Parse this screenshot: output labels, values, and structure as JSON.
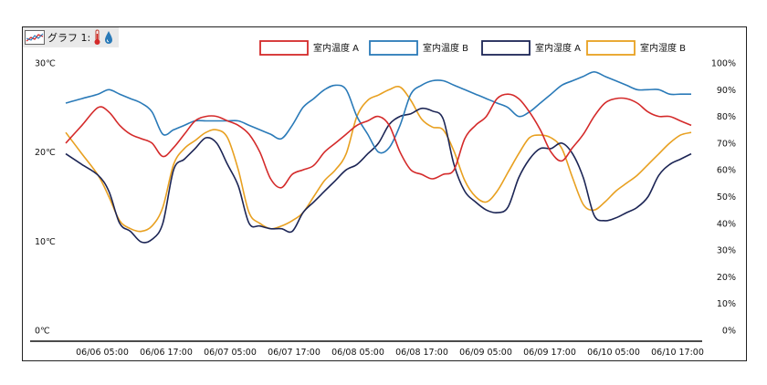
{
  "window": {
    "title": "グラフ 1:",
    "icons": [
      "thermometer-icon",
      "water-drop-icon"
    ]
  },
  "chart_data": {
    "type": "line",
    "x_ticks": [
      "06/06 05:00",
      "06/06 17:00",
      "06/07 05:00",
      "06/07 17:00",
      "06/08 05:00",
      "06/08 17:00",
      "06/09 05:00",
      "06/09 17:00",
      "06/10 05:00",
      "06/10 17:00"
    ],
    "x_range": [
      0,
      116
    ],
    "x_tick_positions": [
      12,
      24,
      36,
      48,
      60,
      72,
      84,
      96,
      108,
      120
    ],
    "y_left": {
      "ticks": [
        "0℃",
        "10℃",
        "20℃",
        "30℃"
      ],
      "range": [
        0,
        30
      ],
      "unit": "℃"
    },
    "y_right": {
      "ticks": [
        "0%",
        "10%",
        "20%",
        "30%",
        "40%",
        "50%",
        "60%",
        "70%",
        "80%",
        "90%",
        "100%"
      ],
      "range": [
        0,
        100
      ],
      "unit": "%"
    },
    "grid": false,
    "legend_position": "top-right",
    "colors": {
      "temp_a": "#d42a2a",
      "temp_b": "#2a7ab8",
      "hum_a": "#1c2555",
      "hum_b": "#e8a020"
    },
    "series": [
      {
        "name": "室内温度 A",
        "axis": "left",
        "color": "#d42a2a",
        "x": [
          0,
          3,
          6,
          8,
          10,
          12,
          14,
          16,
          18,
          20,
          22,
          24,
          26,
          28,
          30,
          32,
          34,
          36,
          38,
          40,
          42,
          44,
          46,
          48,
          50,
          52,
          54,
          56,
          58,
          60,
          62,
          64,
          66,
          68,
          70,
          72,
          74,
          76,
          78,
          80,
          82,
          84,
          86,
          88,
          90,
          92,
          94,
          96,
          98,
          100,
          102,
          104,
          106,
          108,
          110,
          112,
          114,
          116
        ],
        "y": [
          21,
          23,
          25,
          24.5,
          23,
          22,
          21.5,
          21,
          19.5,
          20.5,
          22,
          23.5,
          24,
          24,
          23.5,
          23,
          22,
          20,
          17,
          16,
          17.5,
          18,
          18.5,
          20,
          21,
          22,
          23,
          23.5,
          24,
          23,
          20,
          18,
          17.5,
          17,
          17.5,
          18,
          21.5,
          23,
          24,
          26,
          26.5,
          26,
          24.5,
          22.5,
          20,
          19,
          20.5,
          22,
          24,
          25.5,
          26,
          26,
          25.5,
          24.5,
          24,
          24,
          23.5,
          23
        ]
      },
      {
        "name": "室内温度 B",
        "axis": "left",
        "color": "#2a7ab8",
        "x": [
          0,
          3,
          6,
          8,
          10,
          12,
          14,
          16,
          18,
          20,
          22,
          24,
          26,
          28,
          30,
          32,
          34,
          36,
          38,
          40,
          42,
          44,
          46,
          48,
          50,
          52,
          54,
          56,
          58,
          60,
          62,
          64,
          66,
          68,
          70,
          72,
          74,
          76,
          78,
          80,
          82,
          84,
          86,
          88,
          90,
          92,
          94,
          96,
          98,
          100,
          102,
          104,
          106,
          108,
          110,
          112,
          114,
          116
        ],
        "y": [
          25.5,
          26,
          26.5,
          27,
          26.5,
          26,
          25.5,
          24.5,
          22,
          22.5,
          23,
          23.5,
          23.5,
          23.5,
          23.5,
          23.5,
          23,
          22.5,
          22,
          21.5,
          23,
          25,
          26,
          27,
          27.5,
          27,
          24,
          22,
          20,
          20.5,
          23,
          26.5,
          27.5,
          28,
          28,
          27.5,
          27,
          26.5,
          26,
          25.5,
          25,
          24,
          24.5,
          25.5,
          26.5,
          27.5,
          28,
          28.5,
          29,
          28.5,
          28,
          27.5,
          27,
          27,
          27,
          26.5,
          26.5,
          26.5
        ]
      },
      {
        "name": "室内湿度 A",
        "axis": "right",
        "color": "#1c2555",
        "x": [
          0,
          3,
          6,
          8,
          10,
          12,
          14,
          16,
          18,
          20,
          22,
          24,
          26,
          28,
          30,
          32,
          34,
          36,
          38,
          40,
          42,
          44,
          46,
          48,
          50,
          52,
          54,
          56,
          58,
          60,
          62,
          64,
          66,
          68,
          70,
          72,
          74,
          76,
          78,
          80,
          82,
          84,
          86,
          88,
          90,
          92,
          94,
          96,
          98,
          100,
          102,
          104,
          106,
          108,
          110,
          112,
          114,
          116
        ],
        "y": [
          66,
          62,
          58,
          52,
          40,
          37,
          33,
          34,
          40,
          60,
          64,
          68,
          72,
          70,
          62,
          54,
          40,
          39,
          38,
          38,
          37,
          44,
          48,
          52,
          56,
          60,
          62,
          66,
          70,
          77,
          80,
          81,
          83,
          82,
          79,
          62,
          52,
          48,
          45,
          44,
          46,
          57,
          64,
          68,
          68,
          70,
          66,
          57,
          43,
          41,
          42,
          44,
          46,
          50,
          58,
          62,
          64,
          66
        ]
      },
      {
        "name": "室内湿度 B",
        "axis": "right",
        "color": "#e8a020",
        "x": [
          0,
          3,
          6,
          8,
          10,
          12,
          14,
          16,
          18,
          20,
          22,
          24,
          26,
          28,
          30,
          32,
          34,
          36,
          38,
          40,
          42,
          44,
          46,
          48,
          50,
          52,
          54,
          56,
          58,
          60,
          62,
          64,
          66,
          68,
          70,
          72,
          74,
          76,
          78,
          80,
          82,
          84,
          86,
          88,
          90,
          92,
          94,
          96,
          98,
          100,
          102,
          104,
          106,
          108,
          110,
          112,
          114,
          116
        ],
        "y": [
          74,
          66,
          58,
          50,
          41,
          38,
          37,
          39,
          46,
          62,
          68,
          71,
          74,
          75,
          72,
          60,
          44,
          40,
          38,
          39,
          41,
          44,
          50,
          56,
          60,
          66,
          80,
          86,
          88,
          90,
          91,
          86,
          79,
          76,
          75,
          67,
          56,
          50,
          48,
          52,
          59,
          66,
          72,
          73,
          72,
          68,
          57,
          47,
          45,
          48,
          52,
          55,
          58,
          62,
          66,
          70,
          73,
          74
        ]
      }
    ]
  }
}
